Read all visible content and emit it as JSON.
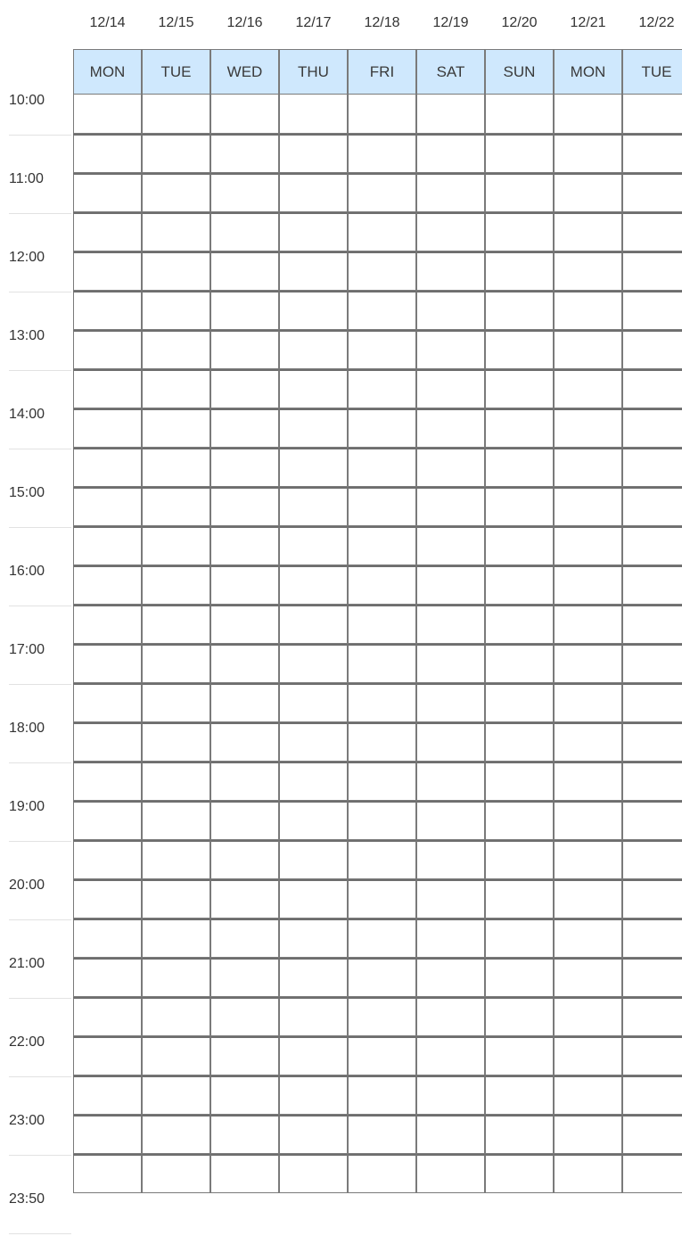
{
  "dates": [
    "12/14",
    "12/15",
    "12/16",
    "12/17",
    "12/18",
    "12/19",
    "12/20",
    "12/21",
    "12/22"
  ],
  "days": [
    "MON",
    "TUE",
    "WED",
    "THU",
    "FRI",
    "SAT",
    "SUN",
    "MON",
    "TUE"
  ],
  "times": [
    "10:00",
    "11:00",
    "12:00",
    "13:00",
    "14:00",
    "15:00",
    "16:00",
    "17:00",
    "18:00",
    "19:00",
    "20:00",
    "21:00",
    "22:00",
    "23:00",
    "23:50"
  ],
  "colors": {
    "header_bg": "#cfe8fd",
    "grid_line": "#7a7a7a",
    "text": "#333333"
  }
}
